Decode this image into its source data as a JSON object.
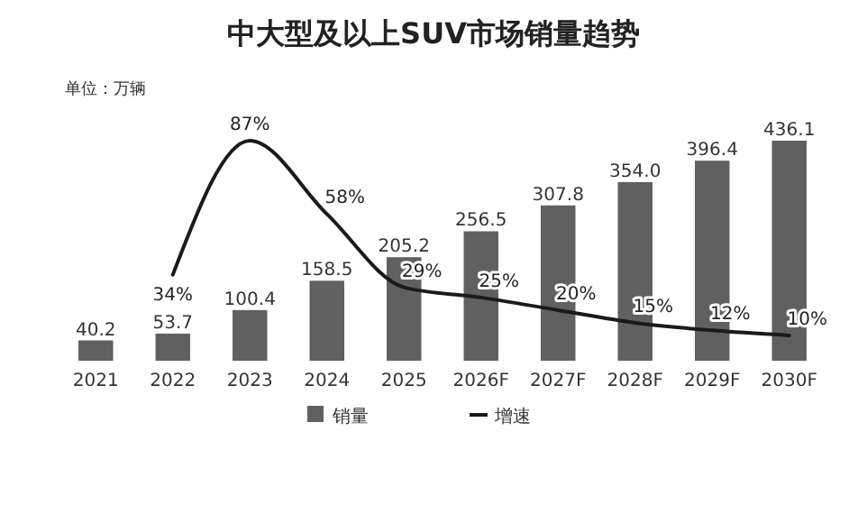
{
  "chart_data": {
    "type": "bar",
    "title": "中大型及以上SUV市场销量趋势",
    "categories": [
      "2021",
      "2022",
      "2023",
      "2024",
      "2025",
      "2026F",
      "2027F",
      "2028F",
      "2029F",
      "2030F"
    ],
    "series": [
      {
        "name": "销量",
        "color": "#606060",
        "values": [
          40.2,
          53.7,
          100.4,
          158.5,
          205.2,
          256.5,
          307.8,
          354.0,
          396.4,
          436.1
        ],
        "value_labels": [
          "40.2",
          "53.7",
          "100.4",
          "158.5",
          "205.2",
          "256.5",
          "307.8",
          "354.0",
          "396.4",
          "436.1"
        ]
      },
      {
        "name": "增速",
        "type": "line",
        "axis": "y2",
        "color": "#1a1a1a",
        "values": [
          null,
          34,
          87,
          58,
          29,
          25,
          20,
          15,
          12,
          10
        ],
        "value_labels": [
          null,
          "34%",
          "87%",
          "58%",
          "29%",
          "25%",
          "20%",
          "15%",
          "12%",
          "10%"
        ]
      }
    ],
    "tick_labels": "x",
    "grid": false,
    "legend": "bottom",
    "marker": "none",
    "line_style": "solid",
    "annotations": [
      "单位：万辆"
    ]
  }
}
